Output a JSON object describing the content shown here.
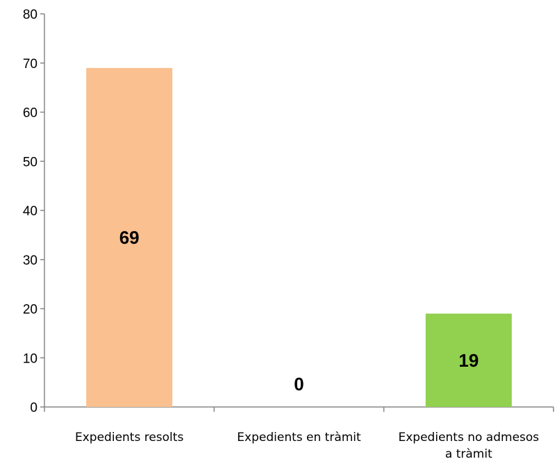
{
  "chart_data": {
    "type": "bar",
    "categories": [
      [
        "Expedients resolts"
      ],
      [
        "Expedients en tràmit"
      ],
      [
        "Expedients no admesos",
        "a tràmit"
      ]
    ],
    "values": [
      69,
      0,
      19
    ],
    "data_labels": [
      "69",
      "0",
      "19"
    ],
    "bar_colors": [
      "#FAC090",
      "#F79646",
      "#92D050"
    ],
    "ylim": [
      0,
      80
    ],
    "yticks": [
      0,
      10,
      20,
      30,
      40,
      50,
      60,
      70,
      80
    ],
    "ytick_labels": [
      "0",
      "10",
      "20",
      "30",
      "40",
      "50",
      "60",
      "70",
      "80"
    ],
    "title": "",
    "xlabel": "",
    "ylabel": "",
    "grid": false,
    "legend": "none"
  }
}
